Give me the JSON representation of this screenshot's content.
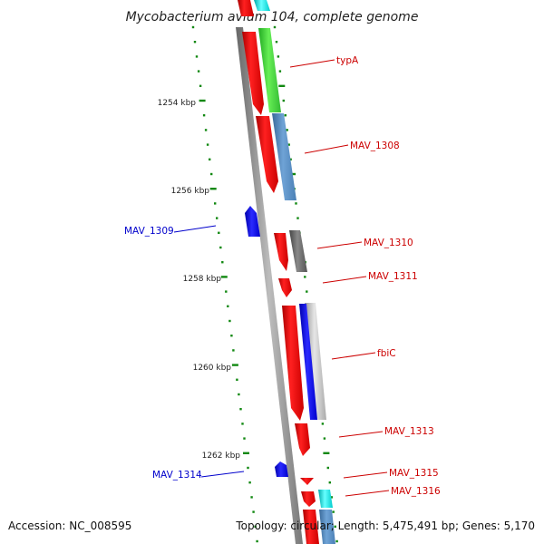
{
  "title": "Mycobacterium avium 104, complete genome",
  "accession_text": "Accession: NC_008595",
  "summary_text": "Topology: circular; Length: 5,475,491 bp; Genes: 5,170",
  "kbp_ticks": [
    "1254 kbp",
    "1256 kbp",
    "1258 kbp",
    "1260 kbp",
    "1262 kbp"
  ],
  "colors": {
    "forward_gene": "#ff0000",
    "reverse_gene": "#0000dd",
    "forward_label": "#cc0000",
    "reverse_label": "#0000cc",
    "cog_green": "#33cc33",
    "cog_steelblue": "#4a86c0",
    "cog_grey": "#666666",
    "cog_lightgrey": "#bbbbbb",
    "cog_cyan": "#00dddd",
    "tick_green": "#118811",
    "backbone": "#999999"
  },
  "gene_labels": {
    "typA": "typA",
    "MAV_1308": "MAV_1308",
    "MAV_1309": "MAV_1309",
    "MAV_1310": "MAV_1310",
    "MAV_1311": "MAV_1311",
    "fbiC": "fbiC",
    "MAV_1313": "MAV_1313",
    "MAV_1314": "MAV_1314",
    "MAV_1315": "MAV_1315",
    "MAV_1316": "MAV_1316"
  }
}
